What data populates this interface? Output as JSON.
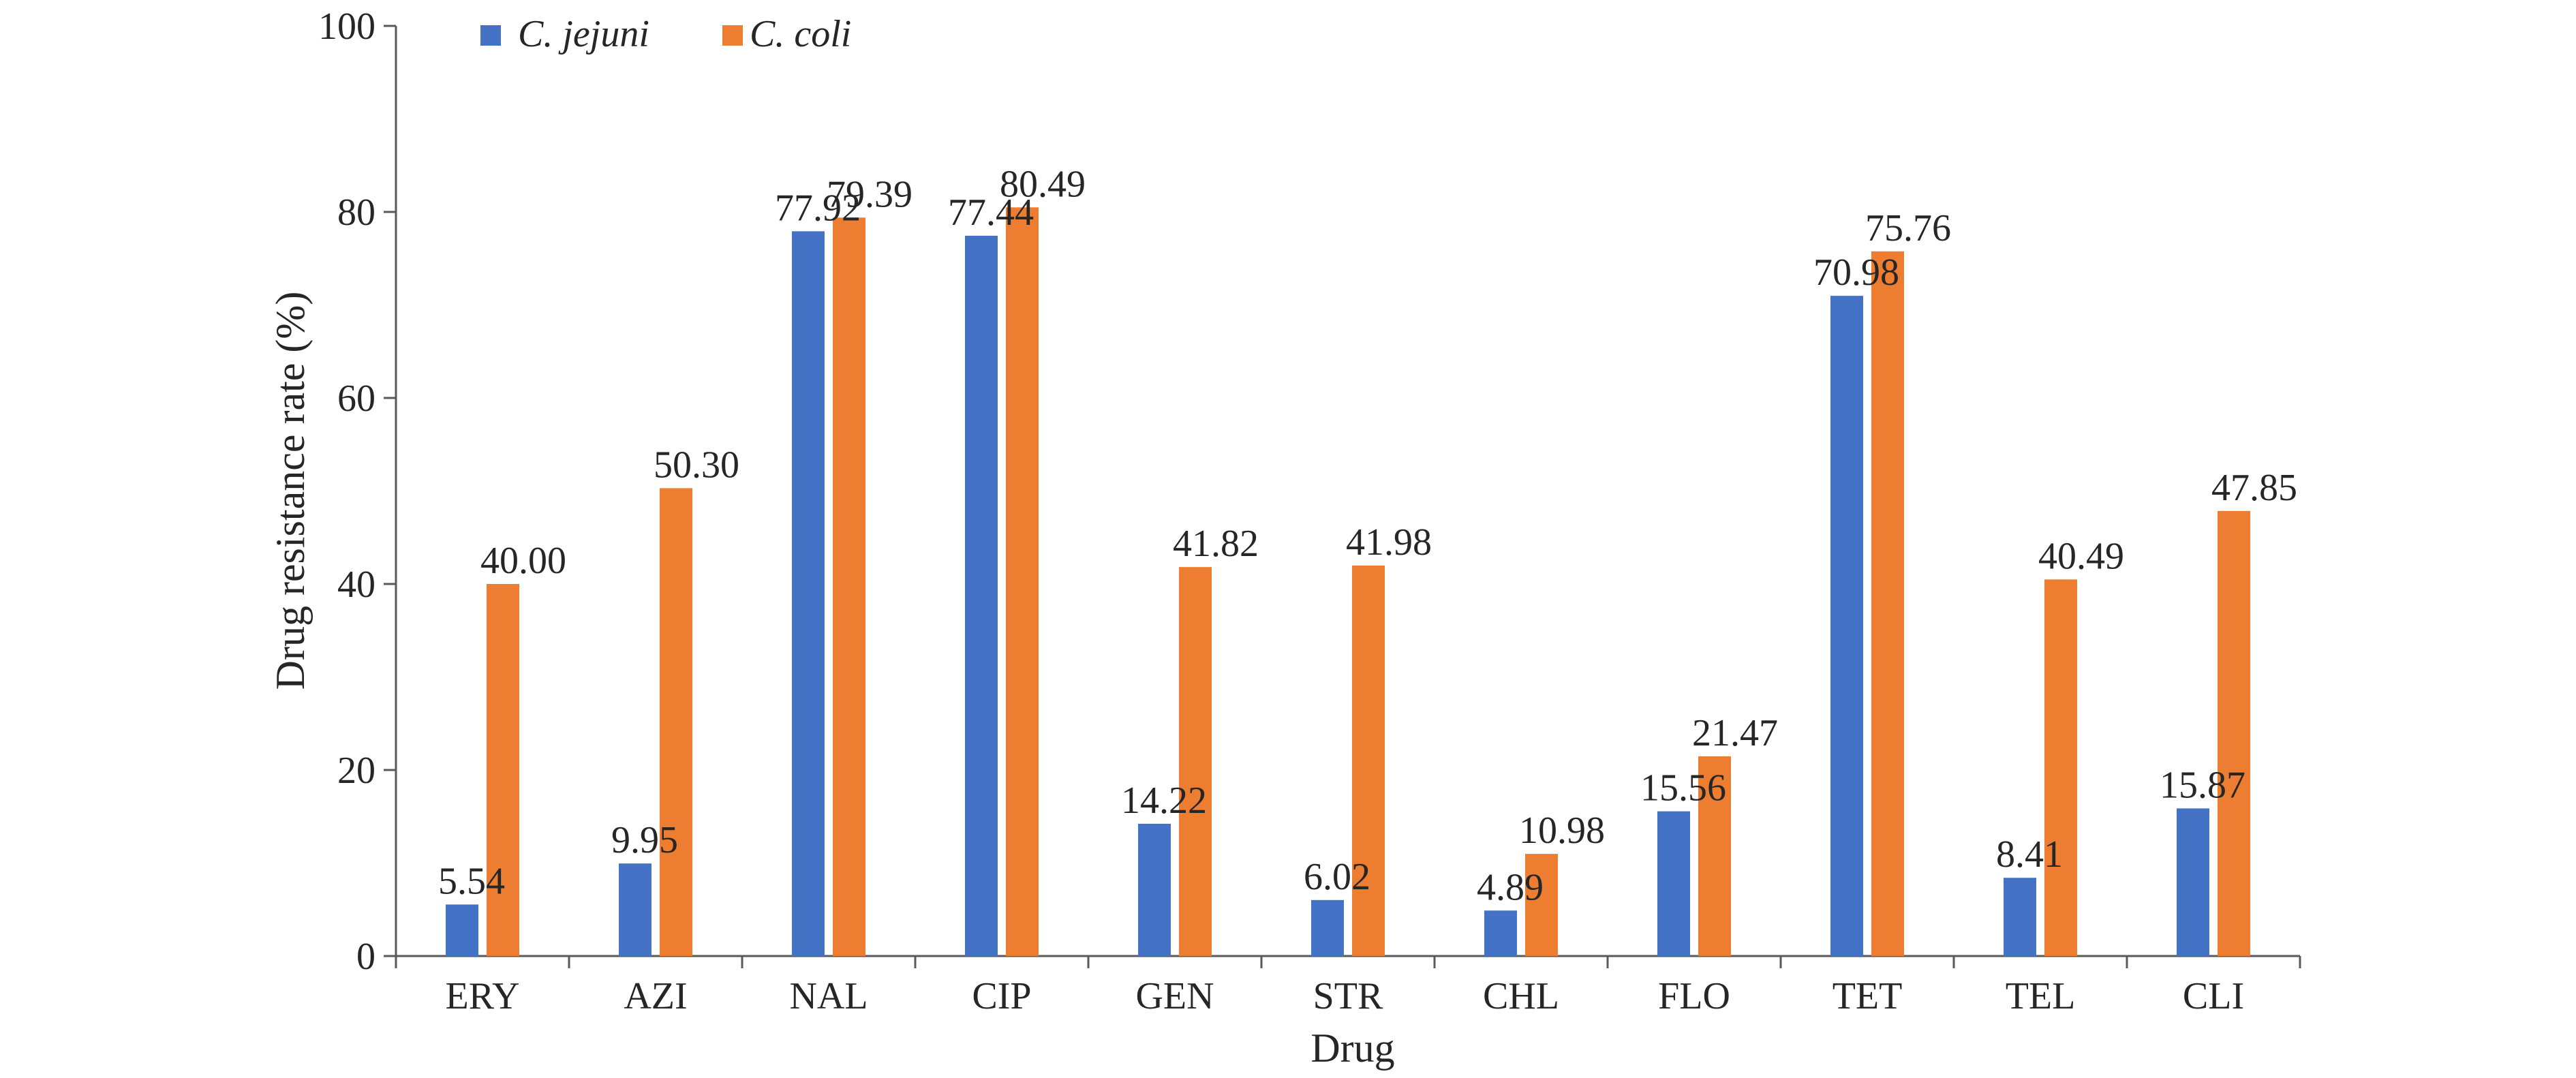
{
  "chart_data": {
    "type": "bar",
    "title": "",
    "xlabel": "Drug",
    "ylabel": "Drug resistance rate (%)",
    "ylim": [
      0,
      100
    ],
    "yticks": [
      0,
      20,
      40,
      60,
      80,
      100
    ],
    "grid": false,
    "legend_position": "top-left",
    "categories": [
      "ERY",
      "AZI",
      "NAL",
      "CIP",
      "GEN",
      "STR",
      "CHL",
      "FLO",
      "TET",
      "TEL",
      "CLI"
    ],
    "series": [
      {
        "name": "C. jejuni",
        "color": "#4472C4",
        "values": [
          5.54,
          9.95,
          77.92,
          77.44,
          14.22,
          6.02,
          4.89,
          15.56,
          70.98,
          8.41,
          15.87
        ],
        "labels": [
          "5.54",
          "9.95",
          "77.92",
          "77.44",
          "14.22",
          "6.02",
          "4.89",
          "15.56",
          "70.98",
          "8.41",
          "15.87"
        ]
      },
      {
        "name": "C. coli",
        "color": "#ED7D31",
        "values": [
          40.0,
          50.3,
          79.39,
          80.49,
          41.82,
          41.98,
          10.98,
          21.47,
          75.76,
          40.49,
          47.85
        ],
        "labels": [
          "40.00",
          "50.30",
          "79.39",
          "80.49",
          "41.82",
          "41.98",
          "10.98",
          "21.47",
          "75.76",
          "40.49",
          "47.85"
        ]
      }
    ]
  }
}
